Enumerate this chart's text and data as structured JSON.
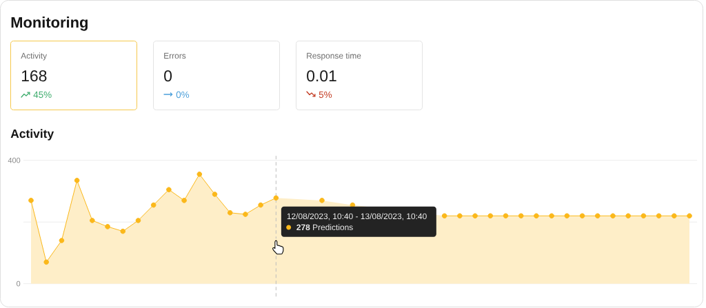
{
  "chart_data": [
    {
      "type": "other",
      "title": "Monitoring"
    },
    {
      "type": "other",
      "title": "Activity",
      "annotations": [
        "168",
        "45%"
      ],
      "color": "#3bab6b"
    },
    {
      "type": "other",
      "title": "Errors",
      "annotations": [
        "0",
        "0%"
      ],
      "color": "#4b9fda"
    },
    {
      "type": "other",
      "title": "Response time",
      "annotations": [
        "0.01",
        "5%"
      ],
      "color": "#c2381f"
    },
    {
      "type": "area",
      "title": "Activity",
      "categories": [
        null,
        null,
        null,
        null,
        null,
        null,
        null,
        null,
        null,
        null,
        null,
        null,
        null,
        null,
        null,
        null,
        null,
        null,
        null,
        null,
        null,
        null,
        null,
        null,
        null,
        null,
        null,
        null,
        null,
        null,
        null,
        null,
        null,
        null,
        null,
        null,
        null,
        null,
        null,
        null,
        null,
        null,
        null,
        null
      ],
      "values": [
        270,
        70,
        140,
        335,
        205,
        185,
        170,
        205,
        255,
        305,
        270,
        355,
        290,
        230,
        225,
        255,
        278,
        null,
        null,
        270,
        null,
        255,
        null,
        null,
        null,
        null,
        null,
        220,
        220,
        220,
        220,
        220,
        220,
        220,
        220,
        220,
        220,
        220,
        220,
        220,
        220,
        220,
        220,
        220
      ],
      "color": "#fbb81a",
      "ylim": [
        0,
        400
      ],
      "yticks": [
        0,
        400
      ],
      "grid": "y",
      "marker": "circle",
      "tick_labels": "y",
      "ref_lines": [
        {
          "axis": "y",
          "value": 200,
          "color": "#ededed"
        }
      ],
      "annotations": [
        "12/08/2023, 10:40 - 13/08/2023, 10:40",
        "**278** Predictions"
      ]
    }
  ]
}
